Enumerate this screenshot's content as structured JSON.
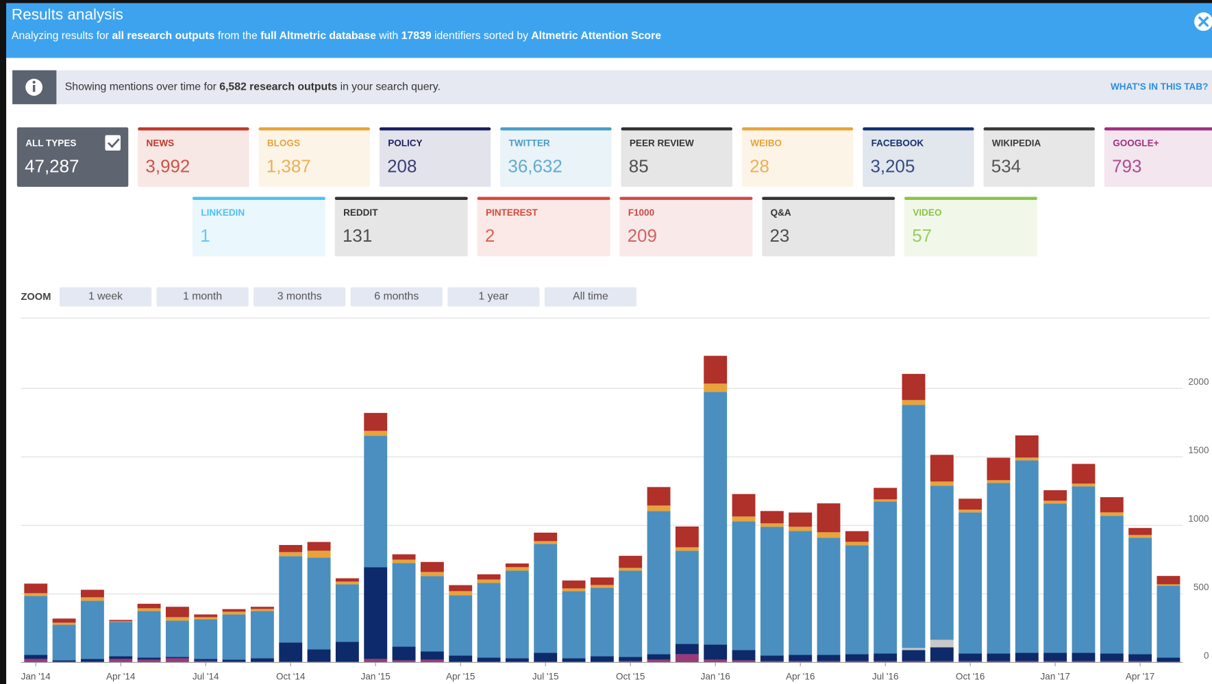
{
  "header": {
    "title": "Results analysis",
    "subtitle": [
      {
        "text": "Analyzing results for ",
        "bold": false
      },
      {
        "text": "all research outputs",
        "bold": true
      },
      {
        "text": " from the ",
        "bold": false
      },
      {
        "text": "full Altmetric database",
        "bold": true
      },
      {
        "text": " with ",
        "bold": false
      },
      {
        "text": "17839",
        "bold": true
      },
      {
        "text": " identifiers sorted by ",
        "bold": false
      },
      {
        "text": "Altmetric Attention Score",
        "bold": true
      }
    ]
  },
  "info": {
    "message": [
      {
        "text": "Showing mentions over time for ",
        "bold": false
      },
      {
        "text": "6,582 research outputs",
        "bold": true
      },
      {
        "text": " in your search query.",
        "bold": false
      }
    ],
    "link": "WHAT'S IN THIS TAB?"
  },
  "cards": [
    [
      {
        "label": "ALL TYPES",
        "value": "47,287",
        "color": "#5e6570",
        "selected": true
      },
      {
        "label": "NEWS",
        "value": "3,992",
        "color": "#c0392b"
      },
      {
        "label": "BLOGS",
        "value": "1,387",
        "color": "#e8a33a"
      },
      {
        "label": "POLICY",
        "value": "208",
        "color": "#1c1f5e"
      },
      {
        "label": "TWITTER",
        "value": "36,632",
        "color": "#4a9cc9"
      },
      {
        "label": "PEER REVIEW",
        "value": "85",
        "color": "#333333"
      },
      {
        "label": "WEIBO",
        "value": "28",
        "color": "#e8a33a"
      },
      {
        "label": "FACEBOOK",
        "value": "3,205",
        "color": "#12306f"
      },
      {
        "label": "WIKIPEDIA",
        "value": "534",
        "color": "#3a3a3a"
      },
      {
        "label": "GOOGLE+",
        "value": "793",
        "color": "#a0307e"
      }
    ],
    [
      {
        "label": "LINKEDIN",
        "value": "1",
        "color": "#4fc1ef"
      },
      {
        "label": "REDDIT",
        "value": "131",
        "color": "#333333"
      },
      {
        "label": "PINTEREST",
        "value": "2",
        "color": "#d7483a"
      },
      {
        "label": "F1000",
        "value": "209",
        "color": "#cc4a4a"
      },
      {
        "label": "Q&A",
        "value": "23",
        "color": "#333333"
      },
      {
        "label": "VIDEO",
        "value": "57",
        "color": "#8bc34a"
      }
    ]
  ],
  "zoom": {
    "label": "ZOOM",
    "options": [
      "1 week",
      "1 month",
      "3 months",
      "6 months",
      "1 year",
      "All time"
    ]
  },
  "chart_data": {
    "type": "stacked_bar",
    "categories": [
      "Jan '14",
      null,
      null,
      "Apr '14",
      null,
      null,
      "Jul '14",
      null,
      null,
      "Oct '14",
      null,
      null,
      "Jan '15",
      null,
      null,
      "Apr '15",
      null,
      null,
      "Jul '15",
      null,
      null,
      "Oct '15",
      null,
      null,
      "Jan '16",
      null,
      null,
      "Apr '16",
      null,
      null,
      "Jul '16",
      null,
      null,
      "Oct '16",
      null,
      null,
      "Jan '17",
      null,
      null,
      "Apr '17",
      null
    ],
    "series": [
      {
        "color": "#9b3a7a",
        "values": [
          25,
          5,
          5,
          25,
          20,
          30,
          10,
          5,
          5,
          5,
          5,
          5,
          25,
          15,
          20,
          5,
          5,
          5,
          5,
          5,
          5,
          10,
          20,
          60,
          20,
          15,
          10,
          10,
          10,
          10,
          10,
          10,
          10,
          10,
          10,
          10,
          10,
          10,
          10,
          10,
          5
        ]
      },
      {
        "color": "#0d2a6b",
        "values": [
          30,
          10,
          20,
          20,
          15,
          10,
          15,
          15,
          25,
          140,
          90,
          145,
          670,
          100,
          60,
          45,
          30,
          25,
          65,
          25,
          40,
          30,
          40,
          75,
          110,
          75,
          40,
          45,
          45,
          50,
          55,
          80,
          100,
          55,
          55,
          60,
          60,
          60,
          55,
          50,
          30
        ]
      },
      {
        "color": "#c8c8c8",
        "values": [
          0,
          0,
          0,
          0,
          0,
          0,
          0,
          0,
          0,
          0,
          0,
          0,
          0,
          0,
          0,
          0,
          0,
          0,
          0,
          0,
          0,
          0,
          0,
          0,
          0,
          0,
          0,
          0,
          0,
          0,
          0,
          15,
          55,
          0,
          0,
          0,
          0,
          0,
          0,
          0,
          0
        ]
      },
      {
        "color": "#4a8fbf",
        "values": [
          430,
          260,
          425,
          250,
          340,
          265,
          290,
          330,
          345,
          630,
          670,
          420,
          960,
          610,
          550,
          440,
          545,
          640,
          795,
          490,
          500,
          630,
          1045,
          680,
          1845,
          940,
          940,
          905,
          855,
          795,
          1110,
          1775,
          1125,
          1030,
          1245,
          1405,
          1090,
          1215,
          1005,
          850,
          525
        ]
      },
      {
        "color": "#e8a33a",
        "values": [
          20,
          15,
          25,
          5,
          20,
          25,
          15,
          20,
          15,
          30,
          50,
          20,
          35,
          25,
          30,
          30,
          25,
          25,
          20,
          20,
          20,
          20,
          40,
          25,
          60,
          35,
          25,
          30,
          40,
          25,
          15,
          35,
          30,
          20,
          20,
          20,
          20,
          20,
          25,
          20,
          10
        ]
      },
      {
        "color": "#b0302a",
        "values": [
          70,
          30,
          55,
          10,
          33,
          76,
          20,
          19,
          16,
          52,
          64,
          24,
          131,
          39,
          73,
          44,
          38,
          27,
          62,
          58,
          55,
          88,
          135,
          152,
          203,
          164,
          90,
          104,
          211,
          78,
          84,
          191,
          195,
          80,
          164,
          162,
          77,
          144,
          111,
          51,
          61
        ]
      }
    ],
    "ylim": [
      0,
      2500
    ],
    "yticks": [
      0,
      500,
      1000,
      1500,
      2000
    ],
    "grid": true
  }
}
